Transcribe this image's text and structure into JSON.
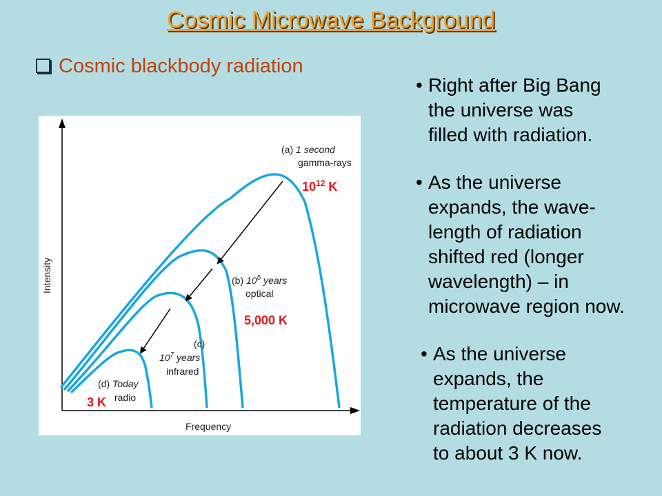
{
  "title": "Cosmic Microwave Background",
  "subtitle": "Cosmic blackbody radiation",
  "bullets": [
    [
      "Right after Big Bang",
      "the universe was",
      "filled with radiation."
    ],
    [
      "As the universe",
      "expands, the wave-",
      "length of radiation",
      "shifted red (longer",
      "wavelength) – in",
      "microwave region now."
    ],
    [
      "As the universe",
      "expands, the",
      "temperature of the",
      "radiation decreases",
      "to about 3 K now."
    ]
  ],
  "diagram": {
    "y_axis_label": "Intensity",
    "x_axis_label": "Frequency",
    "curves": {
      "a": {
        "tag": "(a)",
        "time": "1 second",
        "band": "gamma-rays"
      },
      "b": {
        "tag": "(b)",
        "time_base": "10",
        "time_exp": "5",
        "time_unit": "years",
        "band": "optical"
      },
      "c": {
        "tag": "(c)",
        "time_base": "10",
        "time_exp": "7",
        "time_unit": "years",
        "band": "infrared"
      },
      "d": {
        "tag": "(d)",
        "time": "Today",
        "band": "radio"
      }
    },
    "temperatures": {
      "a_base": "10",
      "a_exp": "12",
      "a_unit": "K",
      "b": "5,000 K",
      "d": "3 K"
    },
    "colors": {
      "curve": "#1aa7dd",
      "temperature": "#e8141c",
      "background": "#b3dde3"
    }
  }
}
